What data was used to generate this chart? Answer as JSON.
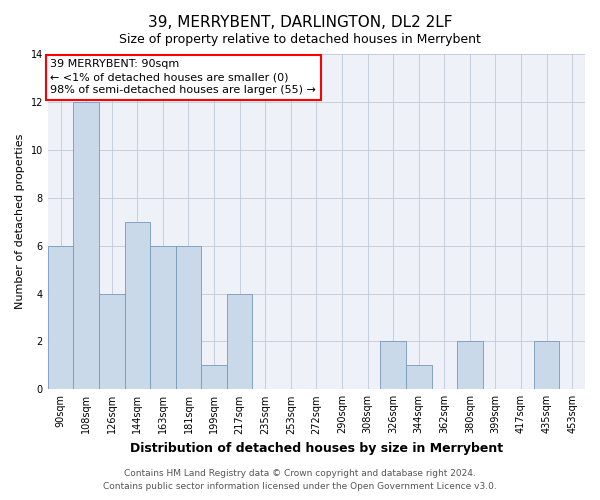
{
  "title": "39, MERRYBENT, DARLINGTON, DL2 2LF",
  "subtitle": "Size of property relative to detached houses in Merrybent",
  "xlabel": "Distribution of detached houses by size in Merrybent",
  "ylabel": "Number of detached properties",
  "bin_labels": [
    "90sqm",
    "108sqm",
    "126sqm",
    "144sqm",
    "163sqm",
    "181sqm",
    "199sqm",
    "217sqm",
    "235sqm",
    "253sqm",
    "272sqm",
    "290sqm",
    "308sqm",
    "326sqm",
    "344sqm",
    "362sqm",
    "380sqm",
    "399sqm",
    "417sqm",
    "435sqm",
    "453sqm"
  ],
  "values": [
    6,
    12,
    4,
    7,
    6,
    6,
    1,
    4,
    0,
    0,
    0,
    0,
    0,
    2,
    1,
    0,
    2,
    0,
    0,
    2,
    0
  ],
  "bar_color": "#c9d9ea",
  "bar_edge_color": "#7799bb",
  "grid_color": "#c0c8d8",
  "bg_color": "#ffffff",
  "plot_bg_color": "#eef2f8",
  "annotation_text_line1": "39 MERRYBENT: 90sqm",
  "annotation_text_line2": "← <1% of detached houses are smaller (0)",
  "annotation_text_line3": "98% of semi-detached houses are larger (55) →",
  "ylim": [
    0,
    14
  ],
  "yticks": [
    0,
    2,
    4,
    6,
    8,
    10,
    12,
    14
  ],
  "footnote_line1": "Contains HM Land Registry data © Crown copyright and database right 2024.",
  "footnote_line2": "Contains public sector information licensed under the Open Government Licence v3.0.",
  "title_fontsize": 11,
  "subtitle_fontsize": 9,
  "xlabel_fontsize": 9,
  "ylabel_fontsize": 8,
  "tick_fontsize": 7,
  "annotation_fontsize": 8,
  "footnote_fontsize": 6.5
}
